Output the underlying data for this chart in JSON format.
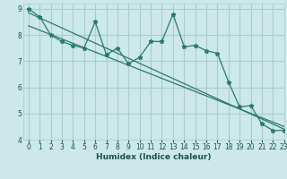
{
  "title": "",
  "xlabel": "Humidex (Indice chaleur)",
  "ylabel": "",
  "bg_color": "#cce8e8",
  "grid_color": "#aacccc",
  "line_color": "#2a7a6a",
  "xlim": [
    -0.5,
    23
  ],
  "ylim": [
    4,
    9.2
  ],
  "yticks": [
    4,
    5,
    6,
    7,
    8,
    9
  ],
  "xticks": [
    0,
    1,
    2,
    3,
    4,
    5,
    6,
    7,
    8,
    9,
    10,
    11,
    12,
    13,
    14,
    15,
    16,
    17,
    18,
    19,
    20,
    21,
    22,
    23
  ],
  "data_x": [
    0,
    1,
    2,
    3,
    4,
    5,
    6,
    7,
    8,
    9,
    10,
    11,
    12,
    13,
    14,
    15,
    16,
    17,
    18,
    19,
    20,
    21,
    22,
    23
  ],
  "data_y": [
    9.0,
    8.7,
    8.0,
    7.75,
    7.6,
    7.5,
    8.5,
    7.25,
    7.5,
    6.9,
    7.15,
    7.75,
    7.75,
    8.8,
    7.55,
    7.6,
    7.4,
    7.3,
    6.2,
    5.25,
    5.3,
    4.6,
    4.35,
    4.35
  ],
  "trend1_x": [
    0,
    23
  ],
  "trend1_y": [
    8.85,
    4.4
  ],
  "trend2_x": [
    0,
    23
  ],
  "trend2_y": [
    8.35,
    4.5
  ],
  "font_color": "#1a5050",
  "tick_fontsize": 5.5,
  "label_fontsize": 6.5
}
